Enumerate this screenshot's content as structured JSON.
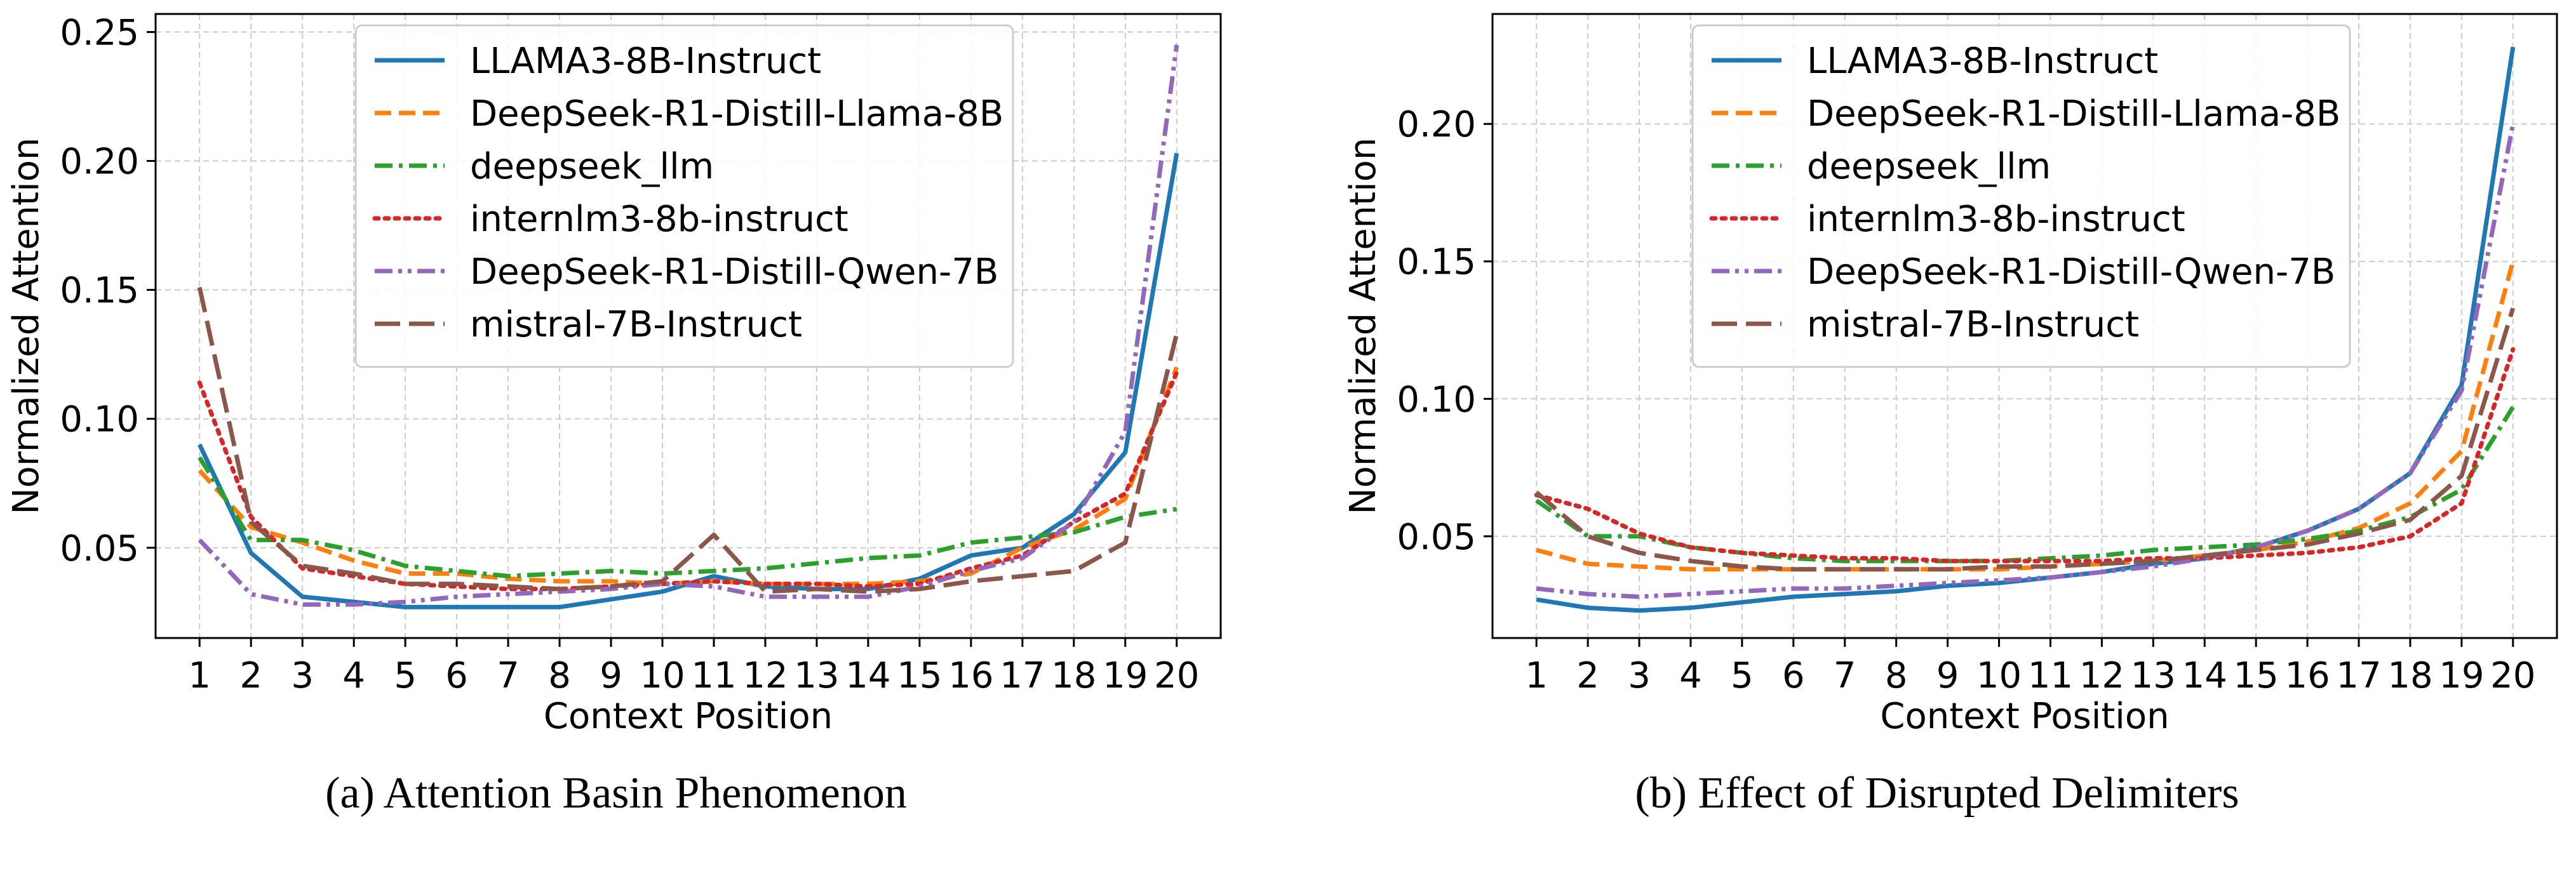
{
  "chart_data": [
    {
      "type": "line",
      "caption": "(a) Attention Basin Phenomenon",
      "xlabel": "Context Position",
      "ylabel": "Normalized Attention",
      "x": [
        1,
        2,
        3,
        4,
        5,
        6,
        7,
        8,
        9,
        10,
        11,
        12,
        13,
        14,
        15,
        16,
        17,
        18,
        19,
        20
      ],
      "ylim": [
        0.015,
        0.257
      ],
      "yticks": [
        0.05,
        0.1,
        0.15,
        0.2,
        0.25
      ],
      "ytick_labels": [
        "0.05",
        "0.10",
        "0.15",
        "0.20",
        "0.25"
      ],
      "grid": true,
      "legend_loc": "upper-center",
      "series": [
        {
          "name": "LLAMA3-8B-Instruct",
          "color": "#1f77b4",
          "dash": "solid",
          "values": [
            0.09,
            0.048,
            0.031,
            0.029,
            0.027,
            0.027,
            0.027,
            0.027,
            0.03,
            0.033,
            0.039,
            0.035,
            0.034,
            0.034,
            0.038,
            0.047,
            0.05,
            0.063,
            0.087,
            0.203
          ]
        },
        {
          "name": "DeepSeek-R1-Distill-Llama-8B",
          "color": "#ff7f0e",
          "dash": "dashed",
          "values": [
            0.08,
            0.058,
            0.052,
            0.045,
            0.04,
            0.04,
            0.038,
            0.037,
            0.037,
            0.036,
            0.037,
            0.036,
            0.036,
            0.036,
            0.037,
            0.04,
            0.05,
            0.057,
            0.069,
            0.12
          ]
        },
        {
          "name": "deepseek_llm",
          "color": "#2ca02c",
          "dash": "dashdot",
          "values": [
            0.085,
            0.053,
            0.053,
            0.049,
            0.043,
            0.041,
            0.039,
            0.04,
            0.041,
            0.04,
            0.041,
            0.042,
            0.044,
            0.046,
            0.047,
            0.052,
            0.054,
            0.056,
            0.062,
            0.065
          ]
        },
        {
          "name": "internlm3-8b-instruct",
          "color": "#d62728",
          "dash": "dotted",
          "values": [
            0.114,
            0.062,
            0.042,
            0.039,
            0.036,
            0.035,
            0.034,
            0.034,
            0.035,
            0.036,
            0.037,
            0.036,
            0.036,
            0.035,
            0.036,
            0.042,
            0.047,
            0.06,
            0.071,
            0.118
          ]
        },
        {
          "name": "DeepSeek-R1-Distill-Qwen-7B",
          "color": "#9467bd",
          "dash": "dashdotdot",
          "values": [
            0.053,
            0.032,
            0.028,
            0.028,
            0.029,
            0.031,
            0.032,
            0.033,
            0.034,
            0.036,
            0.035,
            0.031,
            0.031,
            0.031,
            0.035,
            0.041,
            0.046,
            0.06,
            0.095,
            0.245
          ]
        },
        {
          "name": "mistral-7B-Instruct",
          "color": "#8c564b",
          "dash": "longdash",
          "values": [
            0.151,
            0.06,
            0.043,
            0.04,
            0.036,
            0.036,
            0.035,
            0.034,
            0.035,
            0.037,
            0.055,
            0.033,
            0.034,
            0.033,
            0.034,
            0.037,
            0.039,
            0.041,
            0.052,
            0.133
          ]
        }
      ]
    },
    {
      "type": "line",
      "caption": "(b) Effect of Disrupted Delimiters",
      "xlabel": "Context Position",
      "ylabel": "Normalized Attention",
      "x": [
        1,
        2,
        3,
        4,
        5,
        6,
        7,
        8,
        9,
        10,
        11,
        12,
        13,
        14,
        15,
        16,
        17,
        18,
        19,
        20
      ],
      "ylim": [
        0.013,
        0.24
      ],
      "yticks": [
        0.05,
        0.1,
        0.15,
        0.2
      ],
      "ytick_labels": [
        "0.05",
        "0.10",
        "0.15",
        "0.20"
      ],
      "grid": true,
      "legend_loc": "upper-center",
      "series": [
        {
          "name": "LLAMA3-8B-Instruct",
          "color": "#1f77b4",
          "dash": "solid",
          "values": [
            0.027,
            0.024,
            0.023,
            0.024,
            0.026,
            0.028,
            0.029,
            0.03,
            0.032,
            0.033,
            0.035,
            0.037,
            0.04,
            0.042,
            0.046,
            0.052,
            0.06,
            0.073,
            0.105,
            0.228
          ]
        },
        {
          "name": "DeepSeek-R1-Distill-Llama-8B",
          "color": "#ff7f0e",
          "dash": "dashed",
          "values": [
            0.045,
            0.04,
            0.039,
            0.038,
            0.038,
            0.038,
            0.038,
            0.038,
            0.038,
            0.038,
            0.039,
            0.04,
            0.041,
            0.043,
            0.045,
            0.048,
            0.053,
            0.062,
            0.081,
            0.15
          ]
        },
        {
          "name": "deepseek_llm",
          "color": "#2ca02c",
          "dash": "dashdot",
          "values": [
            0.063,
            0.05,
            0.05,
            0.046,
            0.044,
            0.042,
            0.041,
            0.041,
            0.041,
            0.041,
            0.042,
            0.043,
            0.045,
            0.046,
            0.047,
            0.049,
            0.052,
            0.057,
            0.067,
            0.097
          ]
        },
        {
          "name": "internlm3-8b-instruct",
          "color": "#d62728",
          "dash": "dotted",
          "values": [
            0.065,
            0.06,
            0.051,
            0.046,
            0.044,
            0.043,
            0.042,
            0.042,
            0.041,
            0.041,
            0.041,
            0.041,
            0.042,
            0.042,
            0.043,
            0.044,
            0.046,
            0.05,
            0.062,
            0.118
          ]
        },
        {
          "name": "DeepSeek-R1-Distill-Qwen-7B",
          "color": "#9467bd",
          "dash": "dashdotdot",
          "values": [
            0.031,
            0.029,
            0.028,
            0.029,
            0.03,
            0.031,
            0.031,
            0.032,
            0.033,
            0.034,
            0.035,
            0.037,
            0.039,
            0.042,
            0.046,
            0.052,
            0.06,
            0.073,
            0.103,
            0.2
          ]
        },
        {
          "name": "mistral-7B-Instruct",
          "color": "#8c564b",
          "dash": "longdash",
          "values": [
            0.066,
            0.05,
            0.044,
            0.041,
            0.039,
            0.038,
            0.038,
            0.038,
            0.038,
            0.039,
            0.039,
            0.04,
            0.041,
            0.043,
            0.045,
            0.047,
            0.051,
            0.056,
            0.072,
            0.133
          ]
        }
      ]
    }
  ]
}
